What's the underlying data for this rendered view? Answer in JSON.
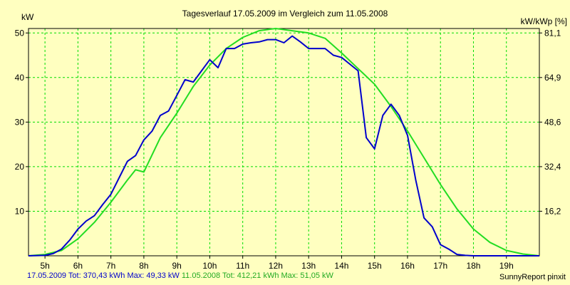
{
  "chart_data": {
    "type": "line",
    "title": "Tagesverlauf 17.05.2009 im Vergleich zum 11.05.2008",
    "ylabel_left": "kW",
    "ylabel_right": "kW/kWp [%]",
    "xlim": [
      4.5,
      20.0
    ],
    "ylim": [
      0,
      51
    ],
    "x_ticks": [
      5,
      6,
      7,
      8,
      9,
      10,
      11,
      12,
      13,
      14,
      15,
      16,
      17,
      18,
      19
    ],
    "x_tick_labels": [
      "5h",
      "6h",
      "7h",
      "8h",
      "9h",
      "10h",
      "11h",
      "12h",
      "13h",
      "14h",
      "15h",
      "16h",
      "17h",
      "18h",
      "19h"
    ],
    "y_ticks_left": [
      10,
      20,
      30,
      40,
      50
    ],
    "y_tick_labels_left": [
      "10",
      "20",
      "30",
      "40",
      "50"
    ],
    "y_ticks_right": [
      10,
      20,
      30,
      40,
      50
    ],
    "y_tick_labels_right": [
      "16,2",
      "32,4",
      "48,6",
      "64,9",
      "81,1"
    ],
    "grid": true,
    "series": [
      {
        "name": "17.05.2009",
        "color": "#0000cc",
        "x": [
          4.5,
          5.0,
          5.25,
          5.5,
          5.75,
          6.0,
          6.25,
          6.5,
          6.75,
          7.0,
          7.25,
          7.5,
          7.75,
          8.0,
          8.25,
          8.5,
          8.75,
          9.0,
          9.25,
          9.5,
          9.75,
          10.0,
          10.25,
          10.5,
          10.75,
          11.0,
          11.25,
          11.5,
          11.75,
          12.0,
          12.25,
          12.5,
          12.75,
          13.0,
          13.25,
          13.5,
          13.75,
          14.0,
          14.25,
          14.5,
          14.75,
          15.0,
          15.25,
          15.5,
          15.75,
          16.0,
          16.25,
          16.5,
          16.75,
          17.0,
          17.25,
          17.5,
          17.75,
          18.0,
          18.5,
          19.0,
          19.5,
          20.0
        ],
        "y": [
          0,
          0.1,
          0.5,
          1.5,
          3.5,
          6.0,
          7.8,
          9.0,
          11.5,
          13.8,
          17.5,
          21.2,
          22.5,
          26.0,
          28.0,
          31.5,
          32.5,
          36.0,
          39.5,
          39.0,
          41.5,
          44.0,
          42.2,
          46.5,
          46.5,
          47.5,
          47.8,
          48.0,
          48.5,
          48.5,
          47.8,
          49.3,
          48.0,
          46.5,
          46.5,
          46.5,
          45.0,
          44.5,
          43.0,
          41.5,
          26.5,
          24.0,
          31.5,
          34.0,
          31.5,
          27.0,
          17.0,
          8.5,
          6.5,
          2.5,
          1.5,
          0.3,
          0.1,
          0,
          0,
          0,
          0,
          0
        ]
      },
      {
        "name": "11.05.2008",
        "color": "#22dd22",
        "x": [
          4.5,
          5.0,
          5.5,
          6.0,
          6.5,
          7.0,
          7.5,
          7.75,
          8.0,
          8.5,
          9.0,
          9.5,
          10.0,
          10.5,
          11.0,
          11.5,
          12.0,
          12.5,
          13.0,
          13.5,
          14.0,
          14.5,
          15.0,
          15.5,
          16.0,
          16.5,
          17.0,
          17.5,
          18.0,
          18.5,
          19.0,
          19.5,
          20.0
        ],
        "y": [
          0,
          0.3,
          1.2,
          3.8,
          7.5,
          12.0,
          17.0,
          19.3,
          18.8,
          26.5,
          32.0,
          38.0,
          42.8,
          46.5,
          49.0,
          50.5,
          51.0,
          50.5,
          50.0,
          48.8,
          45.5,
          42.0,
          38.5,
          33.5,
          28.0,
          22.0,
          16.0,
          10.5,
          6.0,
          3.0,
          1.2,
          0.4,
          0
        ]
      }
    ]
  },
  "footer": {
    "series1": "17.05.2009 Tot: 370,43 kWh Max: 49,33 kW",
    "series2": "11.05.2008 Tot: 412,21 kWh Max: 51,05 kW",
    "credit": "SunnyReport pinxit"
  },
  "colors": {
    "background": "#ffffc0",
    "plot_background": "#ffffc0",
    "grid": "#00dd00",
    "series1": "#0000cc",
    "series2": "#22dd22"
  }
}
